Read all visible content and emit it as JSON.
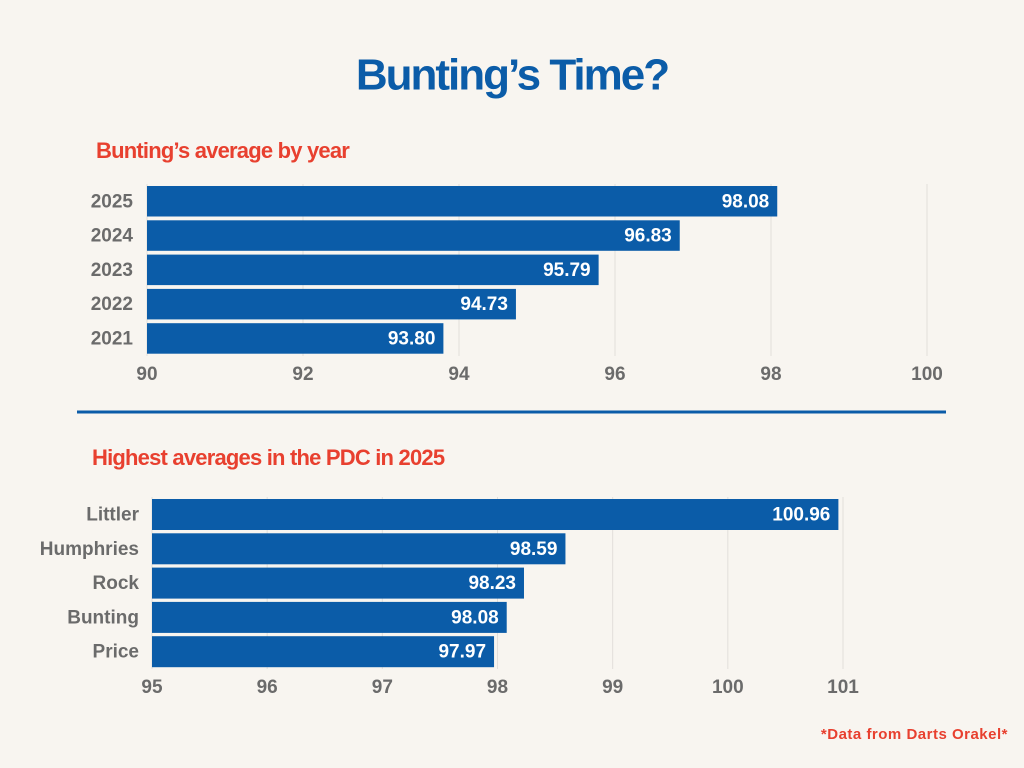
{
  "title": "Bunting’s Time?",
  "source": "*Data from Darts Orakel*",
  "chart_data": [
    {
      "type": "bar",
      "orientation": "horizontal",
      "title": "Bunting’s average by year",
      "categories": [
        "2025",
        "2024",
        "2023",
        "2022",
        "2021"
      ],
      "values": [
        98.08,
        96.83,
        95.79,
        94.73,
        93.8
      ],
      "value_labels": [
        "98.08",
        "96.83",
        "95.79",
        "94.73",
        "93.80"
      ],
      "color": "#0b5ca8",
      "xlim": [
        90,
        100
      ],
      "xticks": [
        90,
        92,
        94,
        96,
        98,
        100
      ],
      "grid": true
    },
    {
      "type": "bar",
      "orientation": "horizontal",
      "title": "Highest averages in the PDC in 2025",
      "categories": [
        "Littler",
        "Humphries",
        "Rock",
        "Bunting",
        "Price"
      ],
      "values": [
        100.96,
        98.59,
        98.23,
        98.08,
        97.97
      ],
      "value_labels": [
        "100.96",
        "98.59",
        "98.23",
        "98.08",
        "97.97"
      ],
      "color": "#0b5ca8",
      "xlim": [
        95,
        101
      ],
      "xticks": [
        95,
        96,
        97,
        98,
        99,
        100,
        101
      ],
      "grid": true
    }
  ]
}
